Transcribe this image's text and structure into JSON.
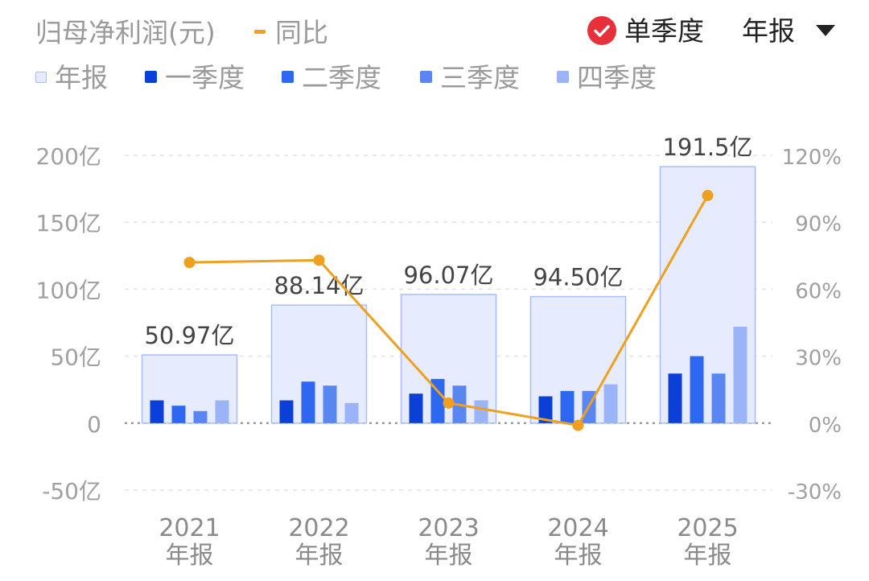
{
  "header": {
    "metric_title": "归母净利润(元)",
    "yoy_label": "同比",
    "single_quarter_label": "单季度",
    "period_selected": "年报"
  },
  "colors": {
    "annual": "#e6ecfd",
    "annual_border": "#a9bdf6",
    "q1": "#0a3fd8",
    "q2": "#2e68f0",
    "q3": "#5a86f2",
    "q4": "#9ab4f7",
    "yoy": "#f0a020",
    "check": "#e8303a"
  },
  "legend": [
    {
      "key": "annual",
      "label": "年报"
    },
    {
      "key": "q1",
      "label": "一季度"
    },
    {
      "key": "q2",
      "label": "二季度"
    },
    {
      "key": "q3",
      "label": "三季度"
    },
    {
      "key": "q4",
      "label": "四季度"
    }
  ],
  "chart_data": {
    "type": "bar",
    "categories": [
      "2021",
      "2022",
      "2023",
      "2024",
      "2025"
    ],
    "category_sublabel": "年报",
    "annual_values": [
      50.97,
      88.14,
      96.07,
      94.5,
      191.5
    ],
    "annual_labels": [
      "50.97亿",
      "88.14亿",
      "96.07亿",
      "94.50亿",
      "191.5亿"
    ],
    "series": [
      {
        "name": "一季度",
        "key": "q1",
        "values": [
          17,
          17,
          22,
          20,
          37
        ]
      },
      {
        "name": "二季度",
        "key": "q2",
        "values": [
          13,
          31,
          33,
          24,
          50
        ]
      },
      {
        "name": "三季度",
        "key": "q3",
        "values": [
          9,
          28,
          28,
          24,
          37
        ]
      },
      {
        "name": "四季度",
        "key": "q4",
        "values": [
          17,
          15,
          17,
          29,
          72
        ]
      }
    ],
    "yoy": {
      "name": "同比",
      "values": [
        72,
        73,
        9,
        -1,
        102
      ]
    },
    "y_left": {
      "ticks": [
        "200亿",
        "150亿",
        "100亿",
        "50亿",
        "0",
        "-50亿"
      ],
      "min": -50,
      "max": 200,
      "step": 50
    },
    "y_right": {
      "ticks": [
        "120%",
        "90%",
        "60%",
        "30%",
        "0%",
        "-30%"
      ],
      "min": -30,
      "max": 120,
      "step": 30
    },
    "grid": true
  }
}
